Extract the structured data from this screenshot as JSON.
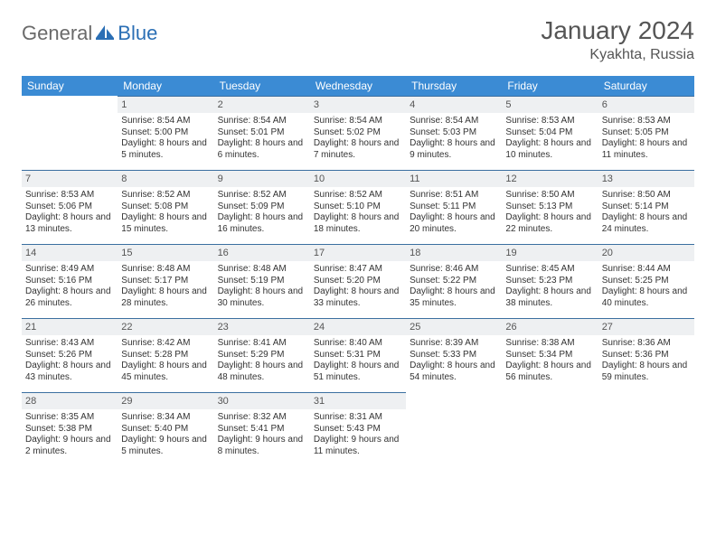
{
  "logo": {
    "part1": "General",
    "part2": "Blue"
  },
  "title": "January 2024",
  "location": "Kyakhta, Russia",
  "colors": {
    "header_bg": "#3b8bd4",
    "daynum_bg": "#eef0f2",
    "rule": "#3b6fa0",
    "logo_gray": "#6a6a6a",
    "logo_blue": "#2b6fb5"
  },
  "weekdays": [
    "Sunday",
    "Monday",
    "Tuesday",
    "Wednesday",
    "Thursday",
    "Friday",
    "Saturday"
  ],
  "weeks": [
    [
      null,
      {
        "n": "1",
        "sr": "Sunrise: 8:54 AM",
        "ss": "Sunset: 5:00 PM",
        "dl": "Daylight: 8 hours and 5 minutes."
      },
      {
        "n": "2",
        "sr": "Sunrise: 8:54 AM",
        "ss": "Sunset: 5:01 PM",
        "dl": "Daylight: 8 hours and 6 minutes."
      },
      {
        "n": "3",
        "sr": "Sunrise: 8:54 AM",
        "ss": "Sunset: 5:02 PM",
        "dl": "Daylight: 8 hours and 7 minutes."
      },
      {
        "n": "4",
        "sr": "Sunrise: 8:54 AM",
        "ss": "Sunset: 5:03 PM",
        "dl": "Daylight: 8 hours and 9 minutes."
      },
      {
        "n": "5",
        "sr": "Sunrise: 8:53 AM",
        "ss": "Sunset: 5:04 PM",
        "dl": "Daylight: 8 hours and 10 minutes."
      },
      {
        "n": "6",
        "sr": "Sunrise: 8:53 AM",
        "ss": "Sunset: 5:05 PM",
        "dl": "Daylight: 8 hours and 11 minutes."
      }
    ],
    [
      {
        "n": "7",
        "sr": "Sunrise: 8:53 AM",
        "ss": "Sunset: 5:06 PM",
        "dl": "Daylight: 8 hours and 13 minutes."
      },
      {
        "n": "8",
        "sr": "Sunrise: 8:52 AM",
        "ss": "Sunset: 5:08 PM",
        "dl": "Daylight: 8 hours and 15 minutes."
      },
      {
        "n": "9",
        "sr": "Sunrise: 8:52 AM",
        "ss": "Sunset: 5:09 PM",
        "dl": "Daylight: 8 hours and 16 minutes."
      },
      {
        "n": "10",
        "sr": "Sunrise: 8:52 AM",
        "ss": "Sunset: 5:10 PM",
        "dl": "Daylight: 8 hours and 18 minutes."
      },
      {
        "n": "11",
        "sr": "Sunrise: 8:51 AM",
        "ss": "Sunset: 5:11 PM",
        "dl": "Daylight: 8 hours and 20 minutes."
      },
      {
        "n": "12",
        "sr": "Sunrise: 8:50 AM",
        "ss": "Sunset: 5:13 PM",
        "dl": "Daylight: 8 hours and 22 minutes."
      },
      {
        "n": "13",
        "sr": "Sunrise: 8:50 AM",
        "ss": "Sunset: 5:14 PM",
        "dl": "Daylight: 8 hours and 24 minutes."
      }
    ],
    [
      {
        "n": "14",
        "sr": "Sunrise: 8:49 AM",
        "ss": "Sunset: 5:16 PM",
        "dl": "Daylight: 8 hours and 26 minutes."
      },
      {
        "n": "15",
        "sr": "Sunrise: 8:48 AM",
        "ss": "Sunset: 5:17 PM",
        "dl": "Daylight: 8 hours and 28 minutes."
      },
      {
        "n": "16",
        "sr": "Sunrise: 8:48 AM",
        "ss": "Sunset: 5:19 PM",
        "dl": "Daylight: 8 hours and 30 minutes."
      },
      {
        "n": "17",
        "sr": "Sunrise: 8:47 AM",
        "ss": "Sunset: 5:20 PM",
        "dl": "Daylight: 8 hours and 33 minutes."
      },
      {
        "n": "18",
        "sr": "Sunrise: 8:46 AM",
        "ss": "Sunset: 5:22 PM",
        "dl": "Daylight: 8 hours and 35 minutes."
      },
      {
        "n": "19",
        "sr": "Sunrise: 8:45 AM",
        "ss": "Sunset: 5:23 PM",
        "dl": "Daylight: 8 hours and 38 minutes."
      },
      {
        "n": "20",
        "sr": "Sunrise: 8:44 AM",
        "ss": "Sunset: 5:25 PM",
        "dl": "Daylight: 8 hours and 40 minutes."
      }
    ],
    [
      {
        "n": "21",
        "sr": "Sunrise: 8:43 AM",
        "ss": "Sunset: 5:26 PM",
        "dl": "Daylight: 8 hours and 43 minutes."
      },
      {
        "n": "22",
        "sr": "Sunrise: 8:42 AM",
        "ss": "Sunset: 5:28 PM",
        "dl": "Daylight: 8 hours and 45 minutes."
      },
      {
        "n": "23",
        "sr": "Sunrise: 8:41 AM",
        "ss": "Sunset: 5:29 PM",
        "dl": "Daylight: 8 hours and 48 minutes."
      },
      {
        "n": "24",
        "sr": "Sunrise: 8:40 AM",
        "ss": "Sunset: 5:31 PM",
        "dl": "Daylight: 8 hours and 51 minutes."
      },
      {
        "n": "25",
        "sr": "Sunrise: 8:39 AM",
        "ss": "Sunset: 5:33 PM",
        "dl": "Daylight: 8 hours and 54 minutes."
      },
      {
        "n": "26",
        "sr": "Sunrise: 8:38 AM",
        "ss": "Sunset: 5:34 PM",
        "dl": "Daylight: 8 hours and 56 minutes."
      },
      {
        "n": "27",
        "sr": "Sunrise: 8:36 AM",
        "ss": "Sunset: 5:36 PM",
        "dl": "Daylight: 8 hours and 59 minutes."
      }
    ],
    [
      {
        "n": "28",
        "sr": "Sunrise: 8:35 AM",
        "ss": "Sunset: 5:38 PM",
        "dl": "Daylight: 9 hours and 2 minutes."
      },
      {
        "n": "29",
        "sr": "Sunrise: 8:34 AM",
        "ss": "Sunset: 5:40 PM",
        "dl": "Daylight: 9 hours and 5 minutes."
      },
      {
        "n": "30",
        "sr": "Sunrise: 8:32 AM",
        "ss": "Sunset: 5:41 PM",
        "dl": "Daylight: 9 hours and 8 minutes."
      },
      {
        "n": "31",
        "sr": "Sunrise: 8:31 AM",
        "ss": "Sunset: 5:43 PM",
        "dl": "Daylight: 9 hours and 11 minutes."
      },
      null,
      null,
      null
    ]
  ]
}
